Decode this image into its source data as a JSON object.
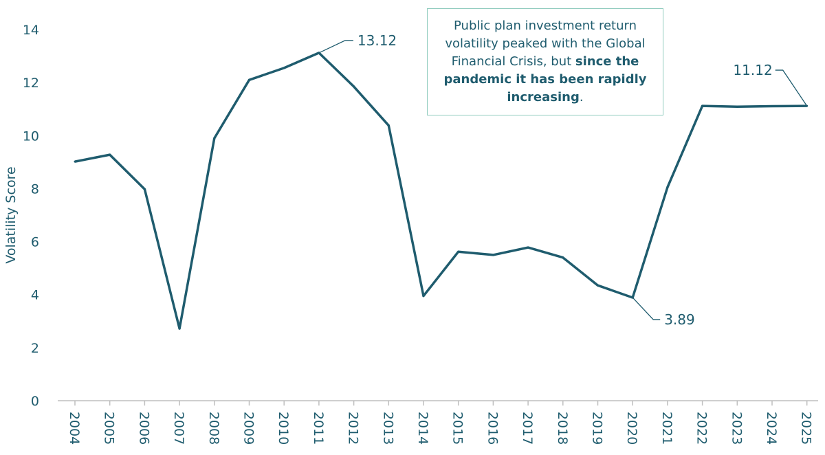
{
  "chart_data": {
    "type": "line",
    "title": "",
    "xlabel": "",
    "ylabel": "Volatility Score",
    "ylim": [
      0,
      14
    ],
    "yticks": [
      0,
      2,
      4,
      6,
      8,
      10,
      12,
      14
    ],
    "grid": false,
    "line_color": "#1f5c6e",
    "categories": [
      "2004",
      "2005",
      "2006",
      "2007",
      "2008",
      "2009",
      "2010",
      "2011",
      "2012",
      "2013",
      "2014",
      "2015",
      "2016",
      "2017",
      "2018",
      "2019",
      "2020",
      "2021",
      "2022",
      "2023",
      "2024",
      "2025"
    ],
    "values": [
      9.02,
      9.28,
      7.98,
      2.72,
      9.9,
      12.1,
      12.55,
      13.12,
      11.85,
      10.38,
      3.95,
      5.62,
      5.5,
      5.78,
      5.4,
      4.35,
      3.89,
      8.05,
      11.12,
      11.09,
      11.11,
      11.12
    ],
    "annotations": [
      {
        "category": "2011",
        "value": 13.12,
        "label": "13.12"
      },
      {
        "category": "2020",
        "value": 3.89,
        "label": "3.89"
      },
      {
        "category": "2025",
        "value": 11.12,
        "label": "11.12"
      }
    ]
  },
  "callout": {
    "text_regular": "Public plan investment return volatility peaked with the Global Financial Crisis, but ",
    "text_bold": "since the pandemic it has been rapidly increasing",
    "text_end": "."
  },
  "colors": {
    "line": "#1f5c6e",
    "callout_border": "#8fcbbd",
    "axis": "#bfbfbf"
  }
}
